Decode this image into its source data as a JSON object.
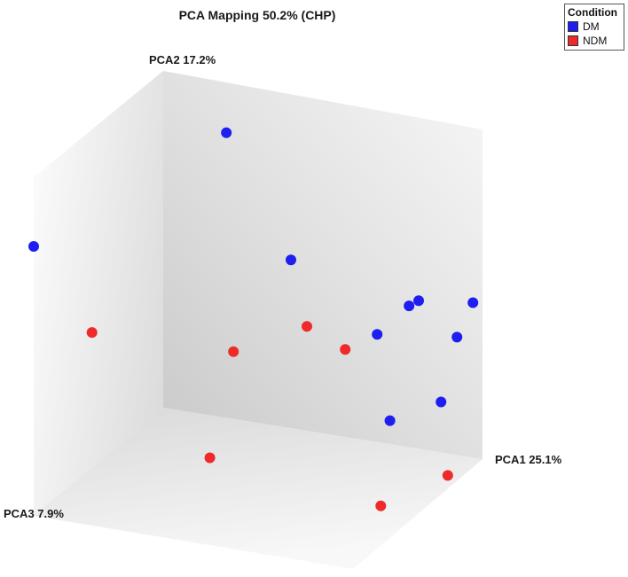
{
  "chart_data": {
    "type": "scatter",
    "subtype": "3d-scatter",
    "title": "PCA Mapping 50.2% (CHP)",
    "axes": {
      "x": "PCA1 25.1%",
      "y": "PCA2 17.2%",
      "z": "PCA3 7.9%"
    },
    "legend": {
      "title": "Condition",
      "placement": "top-right",
      "entries": [
        {
          "name": "DM",
          "color": "#1e1ef0"
        },
        {
          "name": "NDM",
          "color": "#ee2a2a"
        }
      ]
    },
    "series": [
      {
        "name": "DM",
        "color": "#1e1ef0",
        "points": [
          {
            "x": 0.36,
            "y": 1.0,
            "z": 0.4
          },
          {
            "x": 0.0,
            "y": 0.8,
            "z": 1.0
          },
          {
            "x": 0.4,
            "y": 0.5,
            "z": 0.0
          },
          {
            "x": 0.8,
            "y": 0.44,
            "z": 0.0
          },
          {
            "x": 0.77,
            "y": 0.42,
            "z": 0.0
          },
          {
            "x": 0.97,
            "y": 0.46,
            "z": 0.0
          },
          {
            "x": 0.92,
            "y": 0.35,
            "z": 0.0
          },
          {
            "x": 0.67,
            "y": 0.32,
            "z": 0.0
          },
          {
            "x": 0.87,
            "y": 0.15,
            "z": 0.0
          },
          {
            "x": 0.71,
            "y": 0.07,
            "z": 0.0
          }
        ]
      },
      {
        "name": "NDM",
        "color": "#ee2a2a",
        "points": [
          {
            "x": 0.45,
            "y": 0.31,
            "z": 0.0
          },
          {
            "x": 0.57,
            "y": 0.26,
            "z": 0.0
          },
          {
            "x": 0.22,
            "y": 0.2,
            "z": 0.0
          },
          {
            "x": 0.0,
            "y": 0.4,
            "z": 0.55
          },
          {
            "x": 0.28,
            "y": 0.0,
            "z": 0.33
          },
          {
            "x": 0.96,
            "y": 0.0,
            "z": 0.17
          },
          {
            "x": 0.88,
            "y": 0.0,
            "z": 0.49
          }
        ]
      }
    ]
  }
}
